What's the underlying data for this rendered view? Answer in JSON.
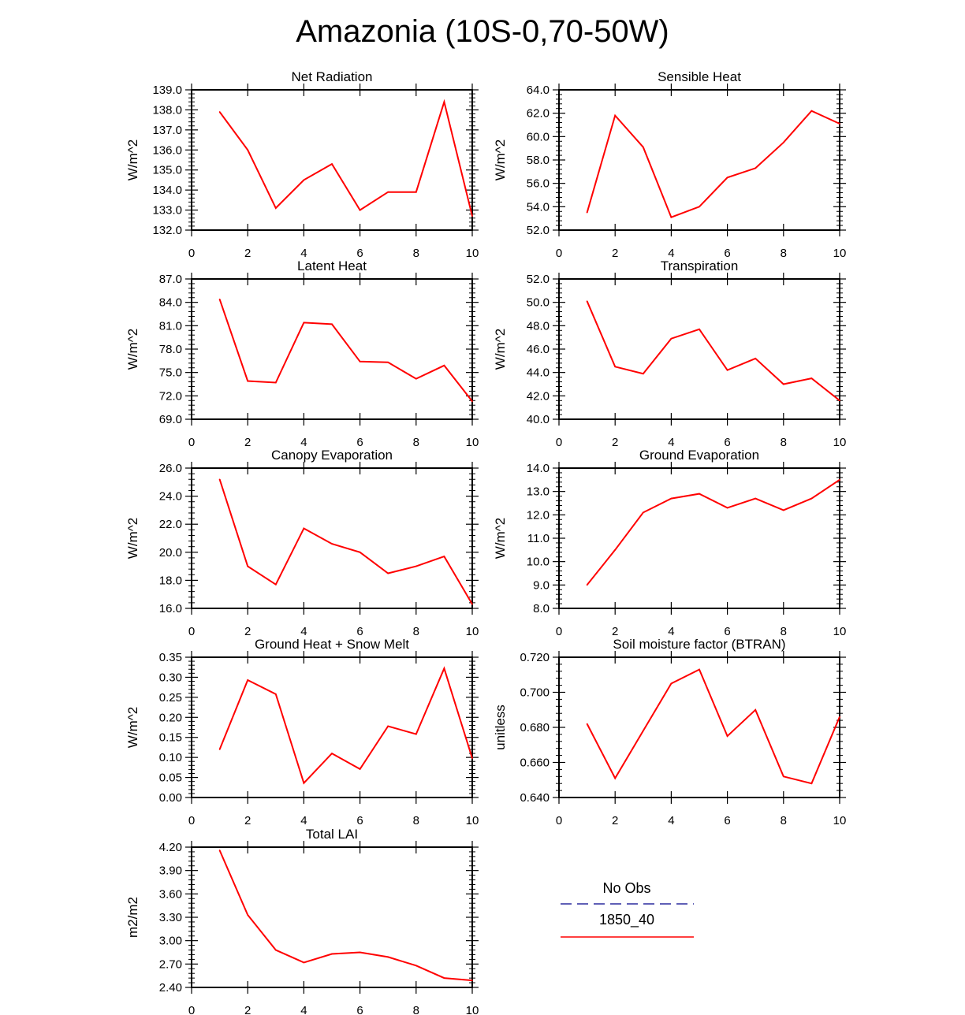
{
  "title": "Amazonia (10S-0,70-50W)",
  "colors": {
    "model": "#ff0000",
    "obs": "#00008b",
    "axis": "#000000"
  },
  "legend": {
    "obs_label": "No Obs",
    "model_label": "1850_40"
  },
  "chart_data": [
    {
      "type": "line",
      "title": "Net Radiation",
      "ylabel": "W/m^2",
      "x": [
        1,
        2,
        3,
        4,
        5,
        6,
        7,
        8,
        9,
        10
      ],
      "xlim": [
        0,
        10
      ],
      "xticks": [
        "0",
        "2",
        "4",
        "6",
        "8",
        "10"
      ],
      "ylim": [
        132,
        139
      ],
      "yticks": [
        "132.0",
        "133.0",
        "134.0",
        "135.0",
        "136.0",
        "137.0",
        "138.0",
        "139.0"
      ],
      "series": [
        {
          "name": "1850_40",
          "values": [
            137.9,
            136.0,
            133.1,
            134.5,
            135.3,
            133.0,
            133.9,
            133.9,
            138.4,
            132.7
          ]
        }
      ]
    },
    {
      "type": "line",
      "title": "Sensible Heat",
      "ylabel": "W/m^2",
      "x": [
        1,
        2,
        3,
        4,
        5,
        6,
        7,
        8,
        9,
        10
      ],
      "xlim": [
        0,
        10
      ],
      "xticks": [
        "0",
        "2",
        "4",
        "6",
        "8",
        "10"
      ],
      "ylim": [
        52,
        64
      ],
      "yticks": [
        "52.0",
        "54.0",
        "56.0",
        "58.0",
        "60.0",
        "62.0",
        "64.0"
      ],
      "series": [
        {
          "name": "1850_40",
          "values": [
            53.5,
            61.8,
            59.1,
            53.1,
            54.0,
            56.5,
            57.3,
            59.5,
            62.2,
            61.1
          ]
        }
      ]
    },
    {
      "type": "line",
      "title": "Latent Heat",
      "ylabel": "W/m^2",
      "x": [
        1,
        2,
        3,
        4,
        5,
        6,
        7,
        8,
        9,
        10
      ],
      "xlim": [
        0,
        10
      ],
      "xticks": [
        "0",
        "2",
        "4",
        "6",
        "8",
        "10"
      ],
      "ylim": [
        69,
        87
      ],
      "yticks": [
        "69.0",
        "72.0",
        "75.0",
        "78.0",
        "81.0",
        "84.0",
        "87.0"
      ],
      "series": [
        {
          "name": "1850_40",
          "values": [
            84.4,
            73.9,
            73.7,
            81.4,
            81.2,
            76.4,
            76.3,
            74.2,
            75.9,
            71.3
          ]
        }
      ]
    },
    {
      "type": "line",
      "title": "Transpiration",
      "ylabel": "W/m^2",
      "x": [
        1,
        2,
        3,
        4,
        5,
        6,
        7,
        8,
        9,
        10
      ],
      "xlim": [
        0,
        10
      ],
      "xticks": [
        "0",
        "2",
        "4",
        "6",
        "8",
        "10"
      ],
      "ylim": [
        40,
        52
      ],
      "yticks": [
        "40.0",
        "42.0",
        "44.0",
        "46.0",
        "48.0",
        "50.0",
        "52.0"
      ],
      "series": [
        {
          "name": "1850_40",
          "values": [
            50.1,
            44.5,
            43.9,
            46.9,
            47.7,
            44.2,
            45.2,
            43.0,
            43.5,
            41.6
          ]
        }
      ]
    },
    {
      "type": "line",
      "title": "Canopy Evaporation",
      "ylabel": "W/m^2",
      "x": [
        1,
        2,
        3,
        4,
        5,
        6,
        7,
        8,
        9,
        10
      ],
      "xlim": [
        0,
        10
      ],
      "xticks": [
        "0",
        "2",
        "4",
        "6",
        "8",
        "10"
      ],
      "ylim": [
        16,
        26
      ],
      "yticks": [
        "16.0",
        "18.0",
        "20.0",
        "22.0",
        "24.0",
        "26.0"
      ],
      "series": [
        {
          "name": "1850_40",
          "values": [
            25.2,
            19.0,
            17.7,
            21.7,
            20.6,
            20.0,
            18.5,
            19.0,
            19.7,
            16.3
          ]
        }
      ]
    },
    {
      "type": "line",
      "title": "Ground Evaporation",
      "ylabel": "W/m^2",
      "x": [
        1,
        2,
        3,
        4,
        5,
        6,
        7,
        8,
        9,
        10
      ],
      "xlim": [
        0,
        10
      ],
      "xticks": [
        "0",
        "2",
        "4",
        "6",
        "8",
        "10"
      ],
      "ylim": [
        8,
        14
      ],
      "yticks": [
        "8.0",
        "9.0",
        "10.0",
        "11.0",
        "12.0",
        "13.0",
        "14.0"
      ],
      "series": [
        {
          "name": "1850_40",
          "values": [
            9.0,
            10.5,
            12.1,
            12.7,
            12.9,
            12.3,
            12.7,
            12.2,
            12.7,
            13.5
          ]
        }
      ]
    },
    {
      "type": "line",
      "title": "Ground Heat + Snow Melt",
      "ylabel": "W/m^2",
      "x": [
        1,
        2,
        3,
        4,
        5,
        6,
        7,
        8,
        9,
        10
      ],
      "xlim": [
        0,
        10
      ],
      "xticks": [
        "0",
        "2",
        "4",
        "6",
        "8",
        "10"
      ],
      "ylim": [
        0,
        0.35
      ],
      "yticks": [
        "0.00",
        "0.05",
        "0.10",
        "0.15",
        "0.20",
        "0.25",
        "0.30",
        "0.35"
      ],
      "series": [
        {
          "name": "1850_40",
          "values": [
            0.12,
            0.293,
            0.258,
            0.036,
            0.11,
            0.071,
            0.178,
            0.158,
            0.322,
            0.098
          ]
        }
      ]
    },
    {
      "type": "line",
      "title": "Soil moisture factor (BTRAN)",
      "ylabel": "unitless",
      "x": [
        1,
        2,
        3,
        4,
        5,
        6,
        7,
        8,
        9,
        10
      ],
      "xlim": [
        0,
        10
      ],
      "xticks": [
        "0",
        "2",
        "4",
        "6",
        "8",
        "10"
      ],
      "ylim": [
        0.64,
        0.72
      ],
      "yticks": [
        "0.640",
        "0.660",
        "0.680",
        "0.700",
        "0.720"
      ],
      "series": [
        {
          "name": "1850_40",
          "values": [
            0.682,
            0.651,
            0.678,
            0.705,
            0.713,
            0.675,
            0.69,
            0.652,
            0.648,
            0.686
          ]
        }
      ]
    },
    {
      "type": "line",
      "title": "Total LAI",
      "ylabel": "m2/m2",
      "x": [
        1,
        2,
        3,
        4,
        5,
        6,
        7,
        8,
        9,
        10
      ],
      "xlim": [
        0,
        10
      ],
      "xticks": [
        "0",
        "2",
        "4",
        "6",
        "8",
        "10"
      ],
      "ylim": [
        2.4,
        4.2
      ],
      "yticks": [
        "2.40",
        "2.70",
        "3.00",
        "3.30",
        "3.60",
        "3.90",
        "4.20"
      ],
      "series": [
        {
          "name": "1850_40",
          "values": [
            4.16,
            3.33,
            2.88,
            2.72,
            2.83,
            2.85,
            2.79,
            2.68,
            2.52,
            2.49
          ]
        }
      ]
    }
  ]
}
